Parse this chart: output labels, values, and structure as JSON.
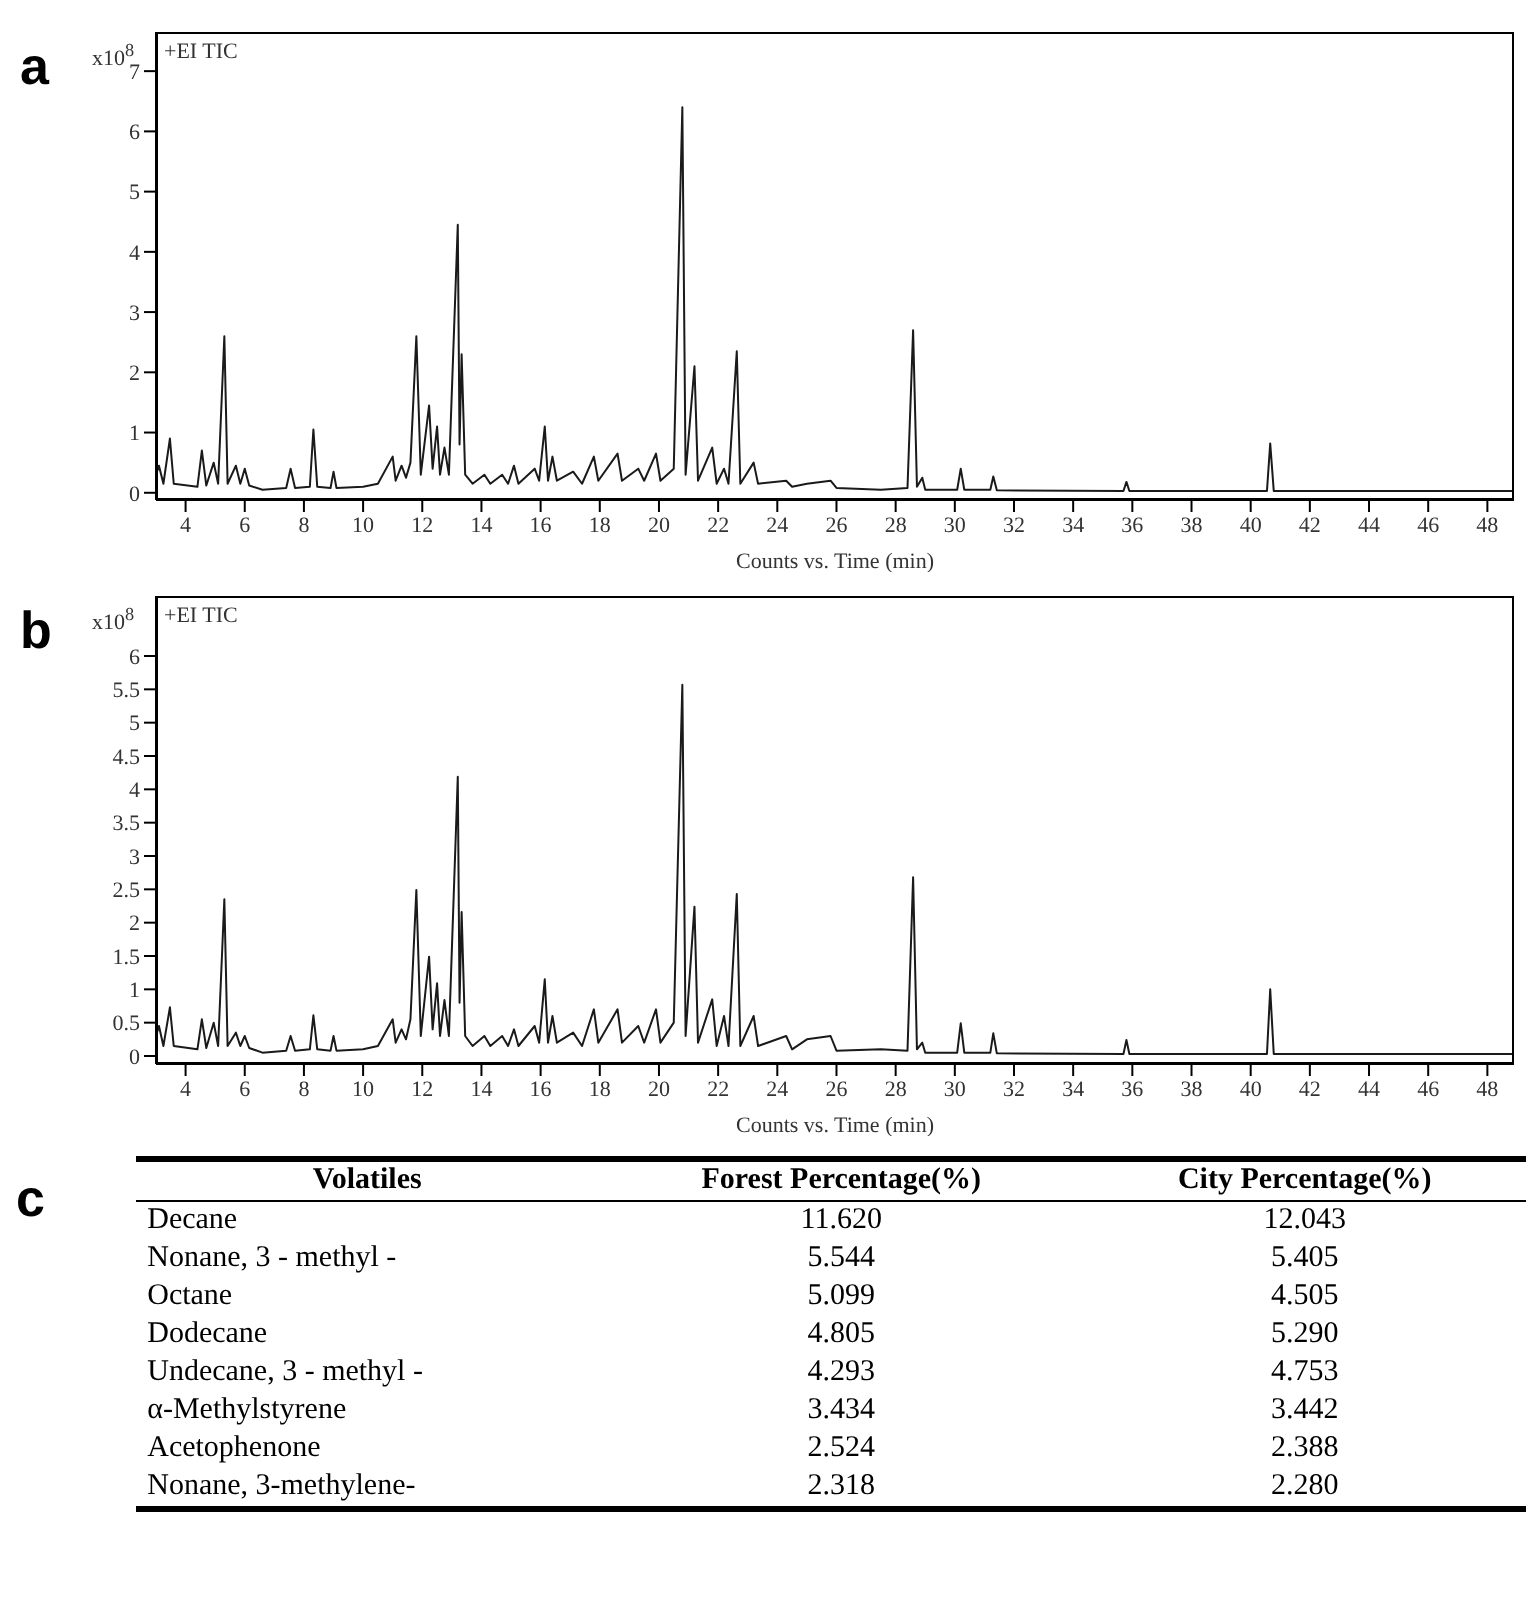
{
  "chart_data": [
    {
      "type": "line",
      "title": "a",
      "xlabel": "Counts vs. Time (min)",
      "annotations": [
        "+EI TIC",
        "x10$^{8}$"
      ],
      "xlim": [
        3,
        48.9
      ],
      "xticks": [
        4,
        6,
        8,
        10,
        12,
        14,
        16,
        18,
        20,
        22,
        24,
        26,
        28,
        30,
        32,
        34,
        36,
        38,
        40,
        42,
        44,
        46,
        48
      ],
      "ylim": [
        -0.12,
        7.65
      ],
      "yticks": [
        0,
        1,
        2,
        3,
        4,
        5,
        6,
        7
      ],
      "series": [
        {
          "color": "#1a1a1a",
          "x": [
            3.0,
            3.1,
            3.25,
            3.47,
            3.6,
            4.4,
            4.55,
            4.7,
            4.95,
            5.1,
            5.31,
            5.42,
            5.7,
            5.85,
            6.0,
            6.15,
            6.6,
            7.4,
            7.55,
            7.7,
            8.2,
            8.32,
            8.45,
            8.9,
            9.0,
            9.1,
            10.0,
            10.5,
            11.0,
            11.1,
            11.3,
            11.45,
            11.6,
            11.8,
            11.95,
            12.23,
            12.35,
            12.5,
            12.6,
            12.75,
            12.9,
            13.2,
            13.26,
            13.33,
            13.45,
            13.7,
            14.1,
            14.3,
            14.7,
            14.9,
            15.1,
            15.25,
            15.8,
            15.95,
            16.14,
            16.25,
            16.4,
            16.55,
            17.1,
            17.4,
            17.8,
            17.95,
            18.6,
            18.75,
            19.3,
            19.5,
            19.9,
            20.05,
            20.5,
            20.79,
            20.9,
            21.2,
            21.32,
            21.8,
            21.95,
            22.2,
            22.35,
            22.63,
            22.75,
            23.2,
            23.35,
            24.3,
            24.5,
            25.0,
            25.8,
            26.0,
            27.5,
            28.4,
            28.59,
            28.72,
            28.9,
            29.0,
            30.08,
            30.2,
            30.32,
            31.2,
            31.3,
            31.42,
            35.7,
            35.8,
            35.9,
            40.55,
            40.66,
            40.78,
            48.9
          ],
          "values": [
            0.3,
            0.45,
            0.15,
            0.9,
            0.15,
            0.1,
            0.7,
            0.12,
            0.5,
            0.15,
            2.6,
            0.15,
            0.45,
            0.15,
            0.4,
            0.12,
            0.05,
            0.08,
            0.4,
            0.08,
            0.1,
            1.05,
            0.1,
            0.08,
            0.35,
            0.08,
            0.1,
            0.15,
            0.6,
            0.2,
            0.45,
            0.25,
            0.5,
            2.6,
            0.3,
            1.45,
            0.4,
            1.1,
            0.3,
            0.75,
            0.3,
            4.45,
            0.8,
            2.3,
            0.3,
            0.15,
            0.3,
            0.15,
            0.3,
            0.15,
            0.45,
            0.15,
            0.4,
            0.2,
            1.1,
            0.2,
            0.6,
            0.2,
            0.35,
            0.15,
            0.6,
            0.2,
            0.65,
            0.2,
            0.4,
            0.2,
            0.65,
            0.2,
            0.4,
            6.4,
            0.3,
            2.1,
            0.2,
            0.75,
            0.15,
            0.4,
            0.15,
            2.35,
            0.15,
            0.5,
            0.15,
            0.2,
            0.1,
            0.15,
            0.2,
            0.08,
            0.05,
            0.08,
            2.7,
            0.1,
            0.25,
            0.05,
            0.05,
            0.4,
            0.05,
            0.05,
            0.27,
            0.04,
            0.03,
            0.18,
            0.03,
            0.03,
            0.82,
            0.03,
            0.03
          ]
        }
      ]
    },
    {
      "type": "line",
      "title": "b",
      "xlabel": "Counts vs. Time (min)",
      "annotations": [
        "+EI TIC",
        "x10$^{8}$"
      ],
      "xlim": [
        3,
        48.9
      ],
      "xticks": [
        4,
        6,
        8,
        10,
        12,
        14,
        16,
        18,
        20,
        22,
        24,
        26,
        28,
        30,
        32,
        34,
        36,
        38,
        40,
        42,
        44,
        46,
        48
      ],
      "ylim": [
        -0.12,
        6.9
      ],
      "yticks": [
        0,
        0.5,
        1,
        1.5,
        2,
        2.5,
        3,
        3.5,
        4,
        4.5,
        5,
        5.5,
        6
      ],
      "series": [
        {
          "color": "#1a1a1a",
          "x": [
            3.0,
            3.1,
            3.25,
            3.47,
            3.6,
            4.4,
            4.55,
            4.7,
            4.95,
            5.1,
            5.31,
            5.42,
            5.7,
            5.85,
            6.0,
            6.15,
            6.6,
            7.4,
            7.55,
            7.7,
            8.2,
            8.32,
            8.45,
            8.9,
            9.0,
            9.1,
            10.0,
            10.5,
            11.0,
            11.1,
            11.3,
            11.45,
            11.6,
            11.8,
            11.95,
            12.23,
            12.35,
            12.5,
            12.6,
            12.75,
            12.9,
            13.2,
            13.26,
            13.33,
            13.45,
            13.7,
            14.1,
            14.3,
            14.7,
            14.9,
            15.1,
            15.25,
            15.8,
            15.95,
            16.14,
            16.25,
            16.4,
            16.55,
            17.1,
            17.4,
            17.8,
            17.95,
            18.6,
            18.75,
            19.3,
            19.5,
            19.9,
            20.05,
            20.5,
            20.79,
            20.9,
            21.2,
            21.32,
            21.8,
            21.95,
            22.2,
            22.35,
            22.63,
            22.75,
            23.2,
            23.35,
            24.3,
            24.5,
            25.0,
            25.8,
            26.0,
            27.5,
            28.4,
            28.59,
            28.72,
            28.9,
            29.0,
            30.08,
            30.2,
            30.32,
            31.2,
            31.3,
            31.42,
            35.7,
            35.8,
            35.9,
            40.55,
            40.66,
            40.78,
            48.9
          ],
          "values": [
            0.3,
            0.45,
            0.15,
            0.73,
            0.15,
            0.1,
            0.55,
            0.12,
            0.5,
            0.15,
            2.35,
            0.15,
            0.35,
            0.15,
            0.3,
            0.12,
            0.05,
            0.08,
            0.3,
            0.08,
            0.1,
            0.61,
            0.1,
            0.08,
            0.3,
            0.08,
            0.1,
            0.15,
            0.55,
            0.2,
            0.4,
            0.25,
            0.55,
            2.49,
            0.3,
            1.49,
            0.4,
            1.09,
            0.3,
            0.84,
            0.3,
            4.19,
            0.8,
            2.16,
            0.3,
            0.15,
            0.3,
            0.15,
            0.3,
            0.15,
            0.4,
            0.15,
            0.45,
            0.2,
            1.15,
            0.2,
            0.6,
            0.2,
            0.35,
            0.15,
            0.7,
            0.2,
            0.7,
            0.2,
            0.45,
            0.2,
            0.7,
            0.2,
            0.5,
            5.57,
            0.3,
            2.24,
            0.2,
            0.85,
            0.15,
            0.6,
            0.15,
            2.43,
            0.15,
            0.6,
            0.15,
            0.3,
            0.1,
            0.25,
            0.3,
            0.08,
            0.1,
            0.08,
            2.68,
            0.1,
            0.2,
            0.05,
            0.05,
            0.49,
            0.05,
            0.05,
            0.34,
            0.04,
            0.03,
            0.24,
            0.03,
            0.03,
            1.0,
            0.03,
            0.03
          ]
        }
      ]
    },
    {
      "type": "other",
      "title": "c",
      "xlabel": "Volatiles",
      "categories": [
        "Decane",
        "Nonane, 3 - methyl -",
        "Octane",
        "Dodecane",
        "Undecane, 3 - methyl -",
        "α-Methylstyrene",
        "Acetophenone",
        "Nonane, 3-methylene-"
      ],
      "series": [
        {
          "name": "Forest Percentage(%)",
          "values": [
            11.62,
            5.544,
            5.099,
            4.805,
            4.293,
            3.434,
            2.524,
            2.318
          ],
          "value_labels": [
            "11.620",
            "5.544",
            "5.099",
            "4.805",
            "4.293",
            "3.434",
            "2.524",
            "2.318"
          ]
        },
        {
          "name": "City Percentage(%)",
          "values": [
            12.043,
            5.405,
            4.505,
            5.29,
            4.753,
            3.442,
            2.388,
            2.28
          ],
          "value_labels": [
            "12.043",
            "5.405",
            "4.505",
            "5.290",
            "4.753",
            "3.442",
            "2.388",
            "2.280"
          ]
        }
      ]
    }
  ]
}
